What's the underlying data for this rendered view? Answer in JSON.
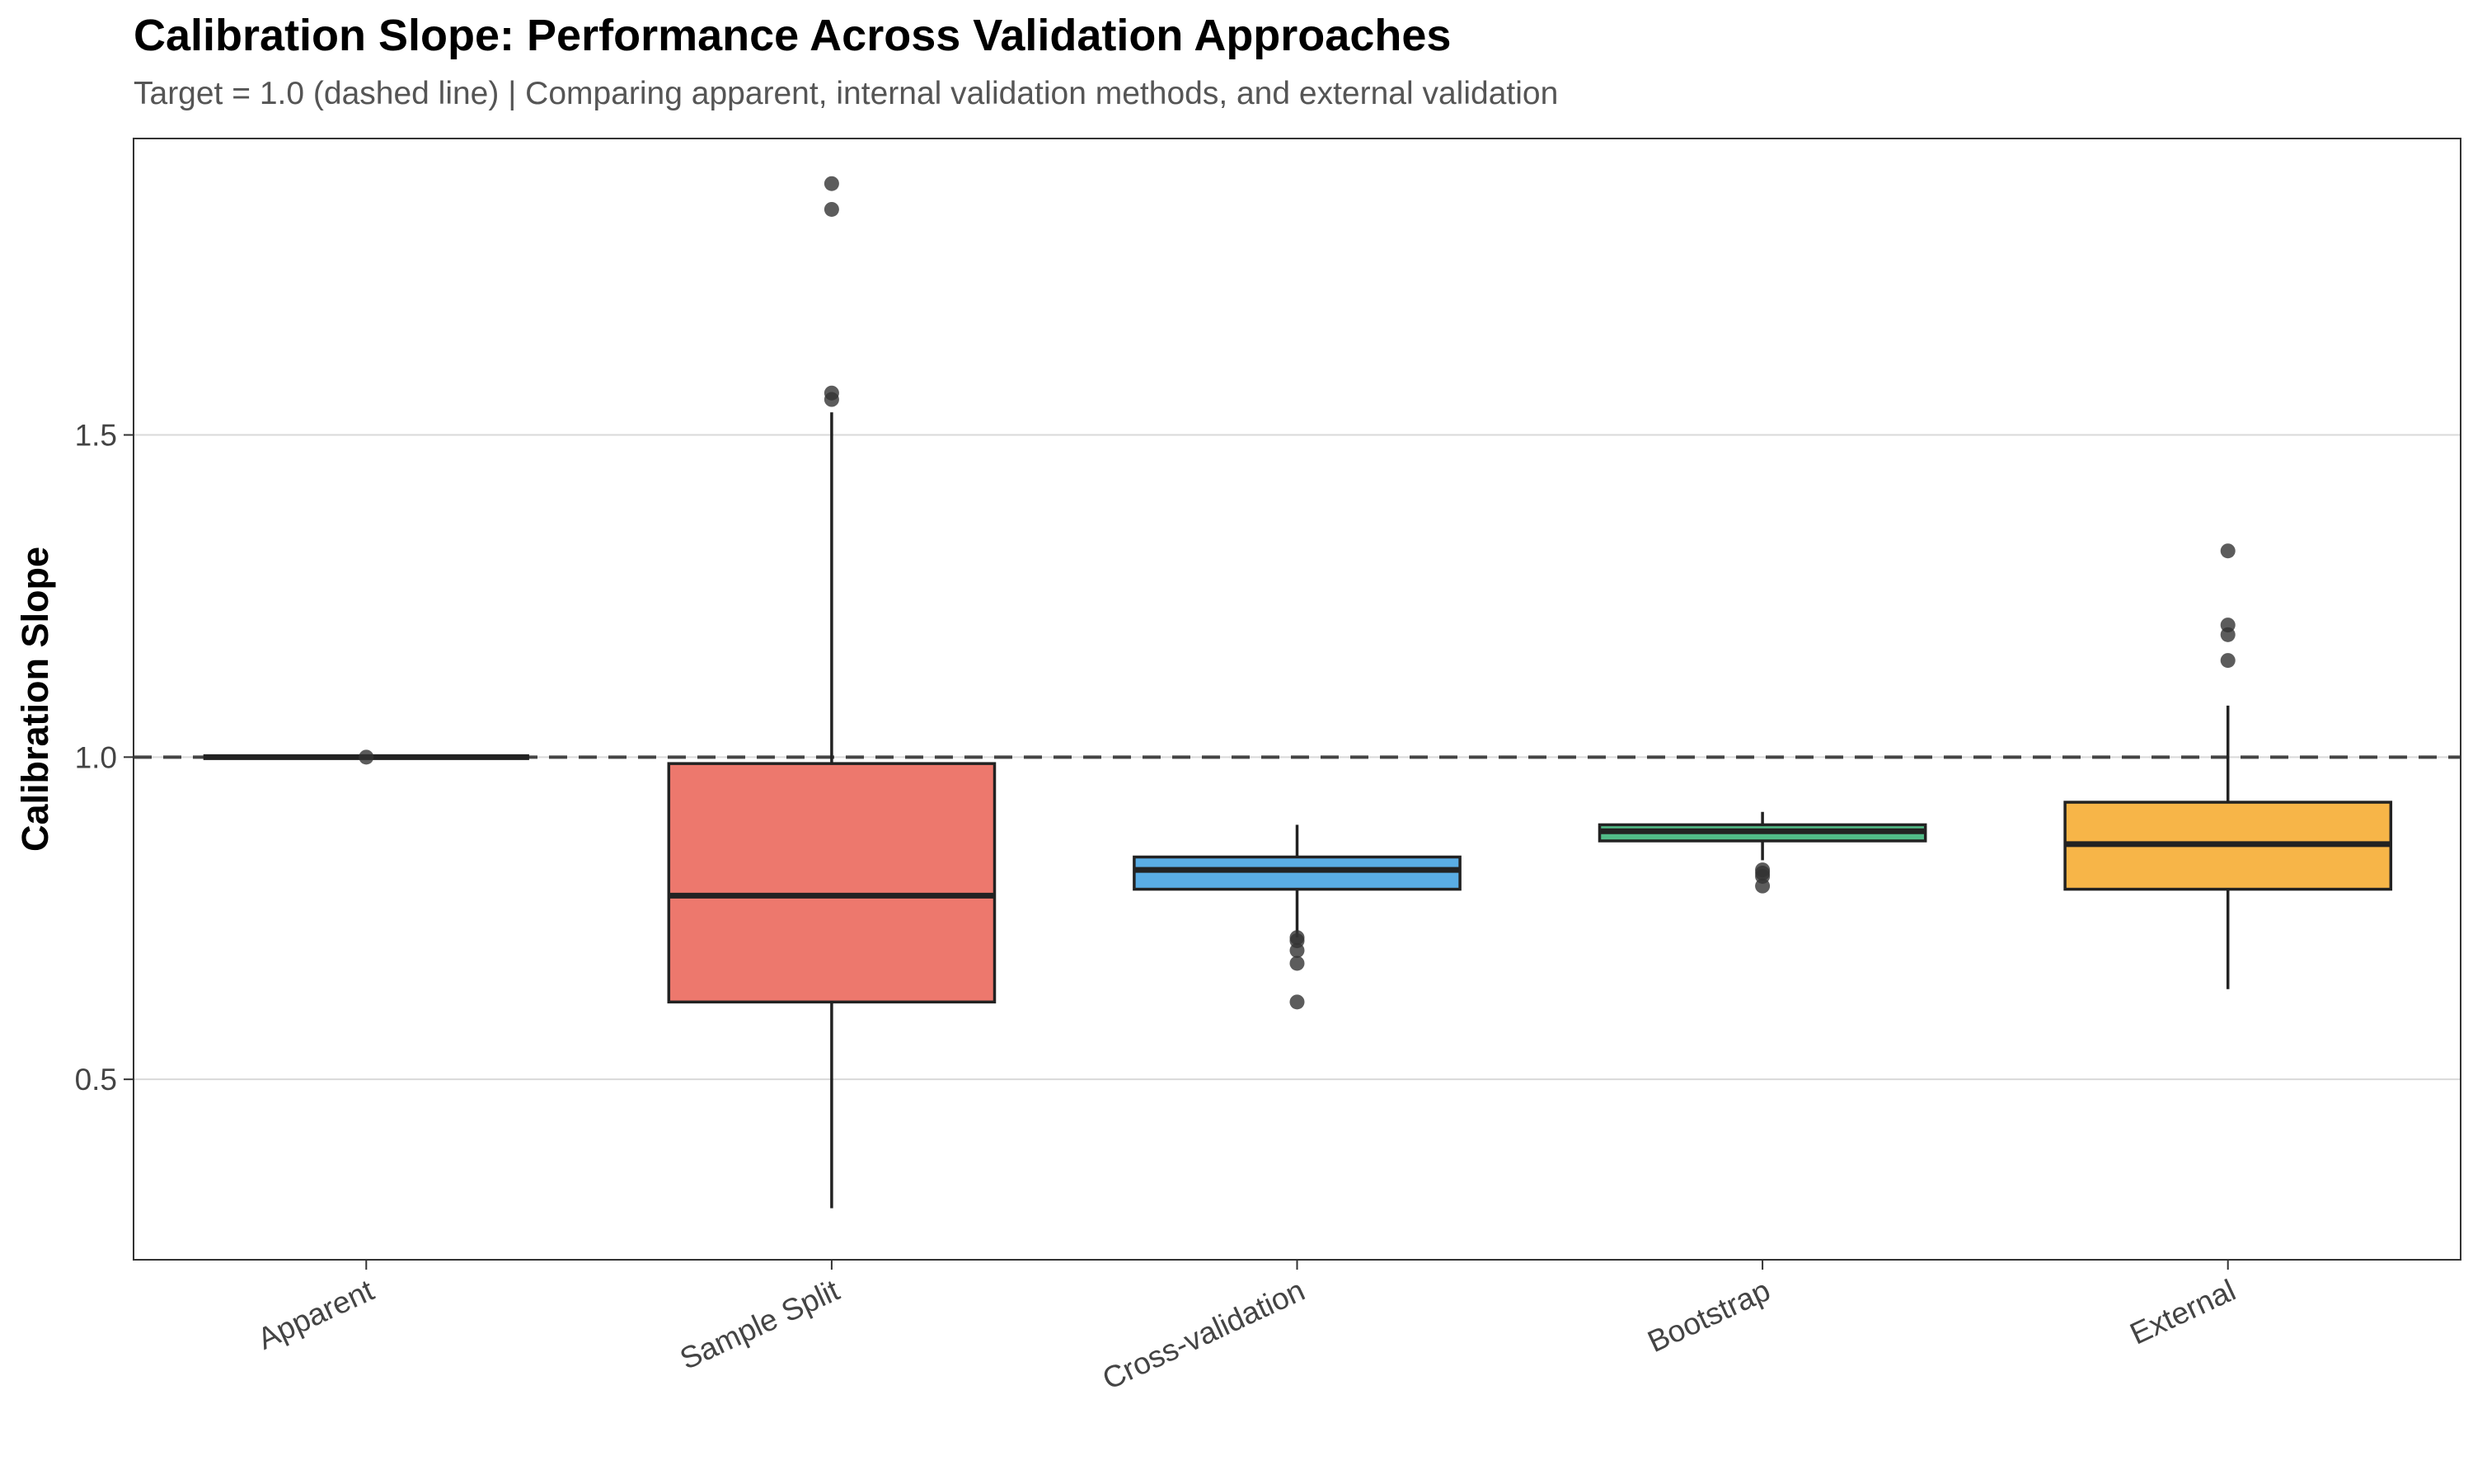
{
  "chart_data": {
    "type": "boxplot",
    "title": "Calibration Slope: Performance Across Validation Approaches",
    "subtitle": "Target = 1.0 (dashed line) | Comparing apparent, internal validation methods, and external validation",
    "xlabel": "",
    "ylabel": "Calibration Slope",
    "ylim": [
      0.22,
      1.96
    ],
    "yticks": [
      0.5,
      1.0,
      1.5
    ],
    "ytick_labels": [
      "0.5",
      "1.0",
      "1.5"
    ],
    "reference_line": {
      "y": 1.0,
      "style": "dashed"
    },
    "grid": "horizontal major lines",
    "legend": "none",
    "categories": [
      "Apparent",
      "Sample Split",
      "Cross-validation",
      "Bootstrap",
      "External"
    ],
    "series": [
      {
        "category": "Apparent",
        "min": 1.0,
        "q1": 1.0,
        "median": 1.0,
        "q3": 1.0,
        "max": 1.0,
        "outliers": [
          1.0
        ],
        "color": "#555555"
      },
      {
        "category": "Sample Split",
        "min": 0.3,
        "q1": 0.62,
        "median": 0.785,
        "q3": 0.99,
        "max": 1.535,
        "outliers": [
          1.89,
          1.85,
          1.565,
          1.555
        ],
        "color": "#ED786D"
      },
      {
        "category": "Cross-validation",
        "min": 0.72,
        "q1": 0.795,
        "median": 0.825,
        "q3": 0.845,
        "max": 0.895,
        "outliers": [
          0.72,
          0.715,
          0.7,
          0.68,
          0.62
        ],
        "color": "#5AADE5"
      },
      {
        "category": "Bootstrap",
        "min": 0.84,
        "q1": 0.87,
        "median": 0.885,
        "q3": 0.895,
        "max": 0.915,
        "outliers": [
          0.825,
          0.82,
          0.815,
          0.8
        ],
        "color": "#52BC88"
      },
      {
        "category": "External",
        "min": 0.64,
        "q1": 0.795,
        "median": 0.865,
        "q3": 0.93,
        "max": 1.08,
        "outliers": [
          1.32,
          1.205,
          1.19,
          1.15
        ],
        "color": "#F7B548"
      }
    ]
  }
}
